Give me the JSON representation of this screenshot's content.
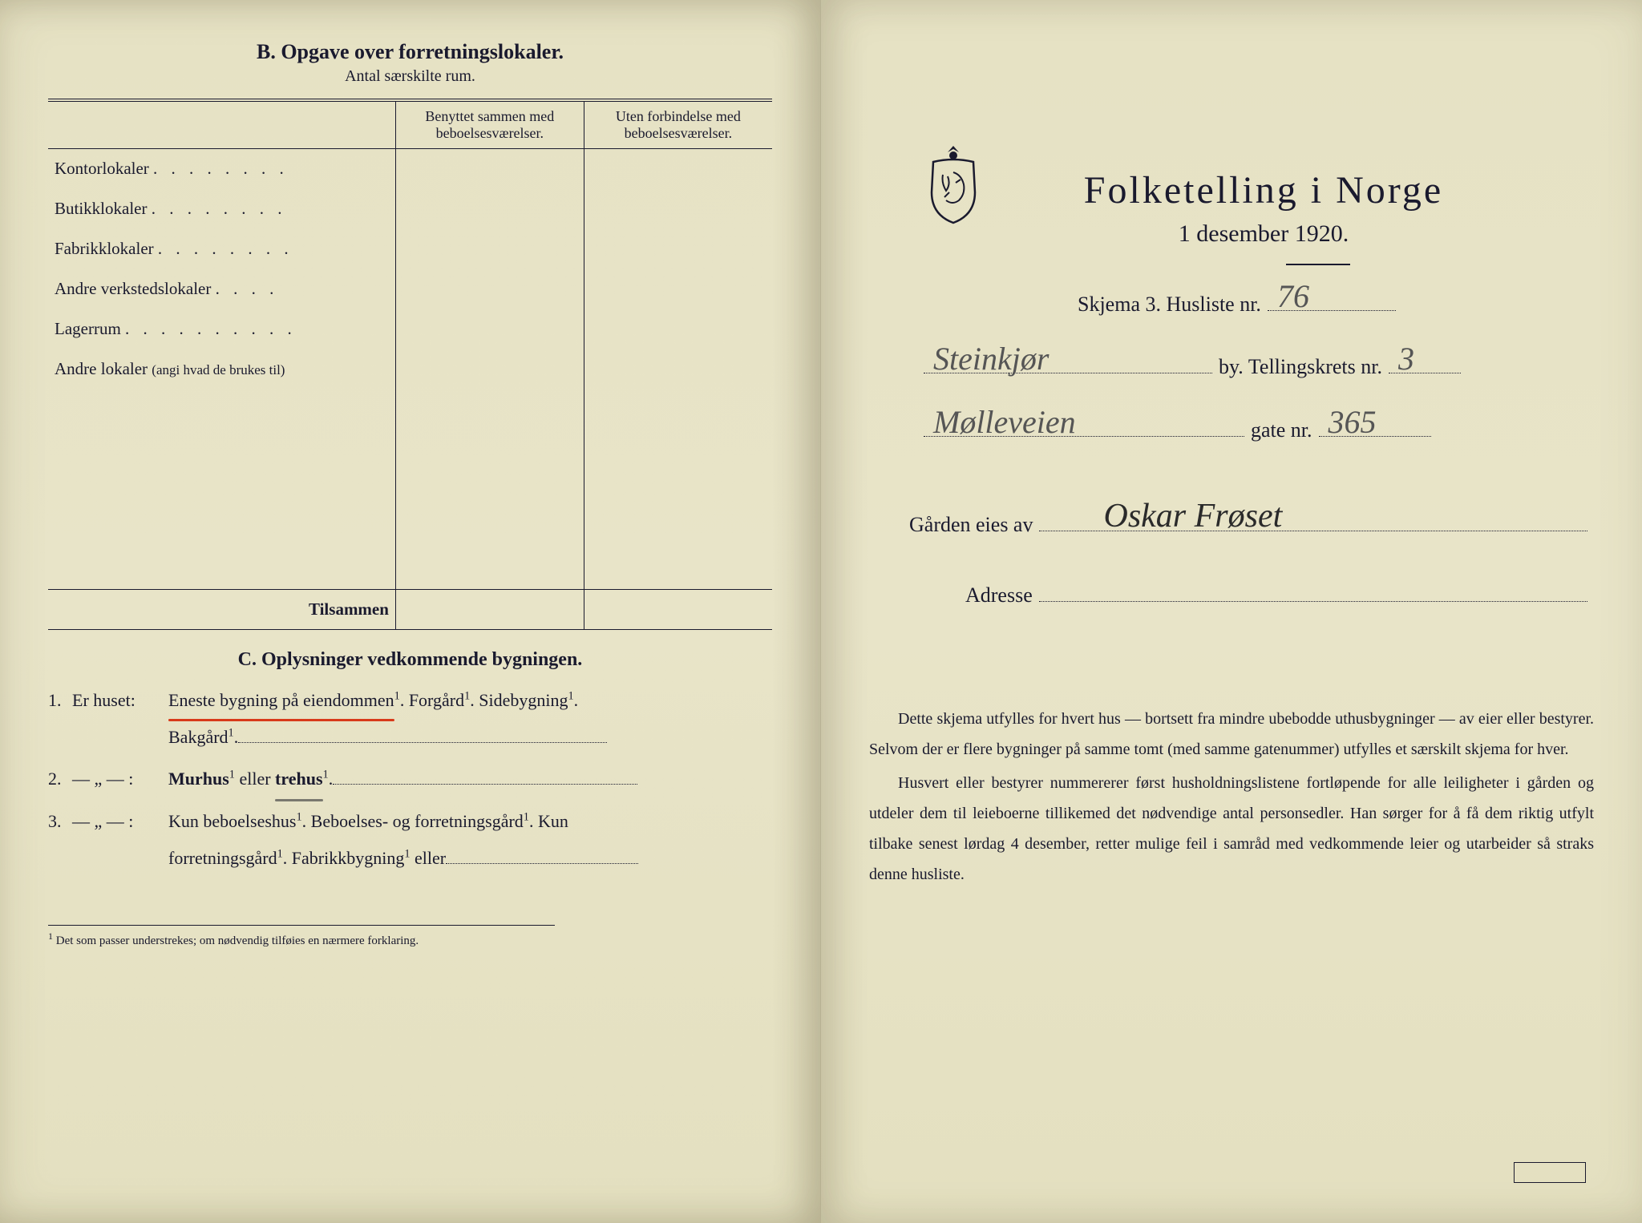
{
  "colors": {
    "paper_bg": "#e8e4c8",
    "ink": "#1a1a2e",
    "pencil": "#555555",
    "red_underline": "#d83a1a",
    "pencil_underline": "#4a4a4a"
  },
  "typography": {
    "serif_family": "Georgia, Times New Roman, serif",
    "script_family": "Brush Script MT, Segoe Script, cursive",
    "header_fontsize": 26,
    "body_fontsize": 22,
    "title_fontsize": 48
  },
  "left": {
    "sectionB": {
      "title": "B.  Opgave over forretningslokaler.",
      "subtitle": "Antal særskilte rum.",
      "col1": "Benyttet sammen med beboelsesværelser.",
      "col2": "Uten forbindelse med beboelsesværelser.",
      "rows": [
        {
          "label": "Kontorlokaler",
          "dots": ". . . . . . . .",
          "v1": "",
          "v2": ""
        },
        {
          "label": "Butikklokaler",
          "dots": ". . . . . . . .",
          "v1": "",
          "v2": ""
        },
        {
          "label": "Fabrikklokaler",
          "dots": ". . . . . . . .",
          "v1": "",
          "v2": ""
        },
        {
          "label": "Andre verkstedslokaler",
          "dots": ". . . .",
          "v1": "",
          "v2": ""
        },
        {
          "label": "Lagerrum",
          "dots": ". . . . . . . . . .",
          "v1": "",
          "v2": ""
        },
        {
          "label": "Andre lokaler",
          "paren": "(angi hvad de brukes til)",
          "dots": "",
          "v1": "",
          "v2": ""
        }
      ],
      "blank_rows": 5,
      "total_label": "Tilsammen"
    },
    "sectionC": {
      "title": "C.  Oplysninger vedkommende bygningen.",
      "items": [
        {
          "num": "1.",
          "label": "Er huset:",
          "text_parts": [
            "Eneste bygning på eiendommen",
            ". Forgård",
            ". Sidebygning",
            "."
          ],
          "underline_red_index": 0,
          "line2": "Bakgård",
          "line2_trail": "."
        },
        {
          "num": "2.",
          "label": "— „ — :",
          "text_parts": [
            "Murhus",
            "  eller  ",
            "trehus",
            "."
          ],
          "underline_pencil_index": 2,
          "fill": true
        },
        {
          "num": "3.",
          "label": "— „ — :",
          "text_parts": [
            "Kun beboelseshus",
            ".  Beboelses-  og  forretningsgård",
            ".  Kun"
          ],
          "line2": "forretningsgård",
          "line2_mid": ". Fabrikkbygning",
          "line2_trail": " eller",
          "fill": true
        }
      ]
    },
    "footnote": {
      "sup": "1",
      "text": "Det som passer understrekes; om nødvendig tilføies en nærmere forklaring."
    }
  },
  "right": {
    "title": "Folketelling  i  Norge",
    "date": "1 desember 1920.",
    "lines": [
      {
        "pre": "Skjema 3.  Husliste nr.",
        "hand": "76",
        "hand_style": "pencil",
        "post": ""
      },
      {
        "pre": "",
        "hand": "Steinkjør",
        "hand_style": "pencil",
        "mid": "by.   Tellingskrets nr.",
        "hand2": "3",
        "hand2_style": "pencil"
      },
      {
        "pre": "",
        "hand": "Mølleveien",
        "hand_style": "pencil",
        "mid": "gate nr.",
        "hand2": "365",
        "hand2_style": "pencil"
      },
      {
        "pre": "Gården eies av",
        "hand": "Oskar Frøset",
        "hand_style": "ink"
      },
      {
        "pre": "Adresse",
        "hand": ""
      }
    ],
    "instructions": [
      "Dette skjema utfylles for hvert hus — bortsett fra mindre ubebodde uthusbygninger — av eier eller bestyrer.  Selvom der er flere bygninger på samme tomt (med samme gatenummer) utfylles et særskilt skjema for hver.",
      "Husvert eller bestyrer nummererer først husholdningslistene fortløpende for alle leiligheter i gården og utdeler dem til leieboerne tillikemed det nødvendige antal personsedler. Han sørger for å få dem riktig utfylt tilbake senest lørdag 4 desember, retter mulige feil i samråd med vedkommende leier og utarbeider så straks denne husliste."
    ],
    "stamp": ""
  }
}
